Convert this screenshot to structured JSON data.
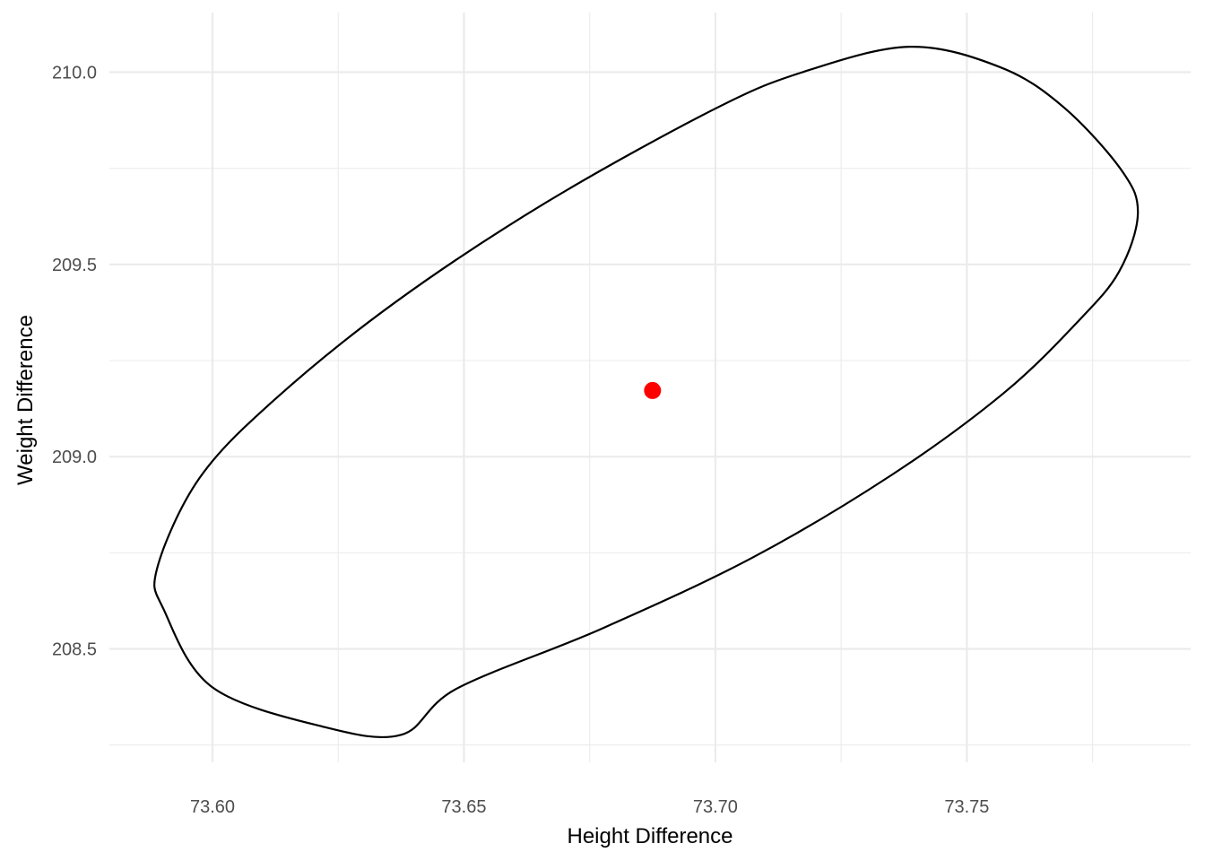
{
  "chart_data": {
    "type": "scatter",
    "title": "",
    "xlabel": "Height Difference",
    "ylabel": "Weight Difference",
    "xlim": [
      73.5795,
      73.7945
    ],
    "ylim": [
      208.205,
      210.155
    ],
    "x_ticks": [
      {
        "value": 73.6,
        "label": "73.60"
      },
      {
        "value": 73.65,
        "label": "73.65"
      },
      {
        "value": 73.7,
        "label": "73.70"
      },
      {
        "value": 73.75,
        "label": "73.75"
      }
    ],
    "x_minor": [
      73.625,
      73.675,
      73.725,
      73.775
    ],
    "y_ticks": [
      {
        "value": 208.5,
        "label": "208.5"
      },
      {
        "value": 209.0,
        "label": "209.0"
      },
      {
        "value": 209.5,
        "label": "209.5"
      },
      {
        "value": 210.0,
        "label": "210.0"
      }
    ],
    "y_minor": [
      208.25,
      208.75,
      209.25,
      209.75
    ],
    "grid": true,
    "point": {
      "x": 73.6875,
      "y": 209.172,
      "color": "#ff0000"
    },
    "ellipse": {
      "center_x": 73.6875,
      "center_y": 209.172,
      "points": [
        [
          73.7386,
          210.066
        ],
        [
          73.7568,
          210.012
        ],
        [
          73.7694,
          209.907
        ],
        [
          73.7809,
          209.742
        ],
        [
          73.784,
          209.631
        ],
        [
          73.7803,
          209.482
        ],
        [
          73.7722,
          209.353
        ],
        [
          73.7573,
          209.165
        ],
        [
          73.735,
          208.952
        ],
        [
          73.7073,
          208.737
        ],
        [
          73.6773,
          208.552
        ],
        [
          73.6486,
          208.397
        ],
        [
          73.6376,
          208.277
        ],
        [
          73.6219,
          208.298
        ],
        [
          73.6,
          208.4
        ],
        [
          73.5904,
          208.6
        ],
        [
          73.589,
          208.71
        ],
        [
          73.5974,
          208.944
        ],
        [
          73.6125,
          209.15
        ],
        [
          73.6364,
          209.402
        ],
        [
          73.6662,
          209.66
        ],
        [
          73.6992,
          209.9
        ],
        [
          73.7171,
          209.999
        ]
      ],
      "color": "#000000"
    }
  }
}
